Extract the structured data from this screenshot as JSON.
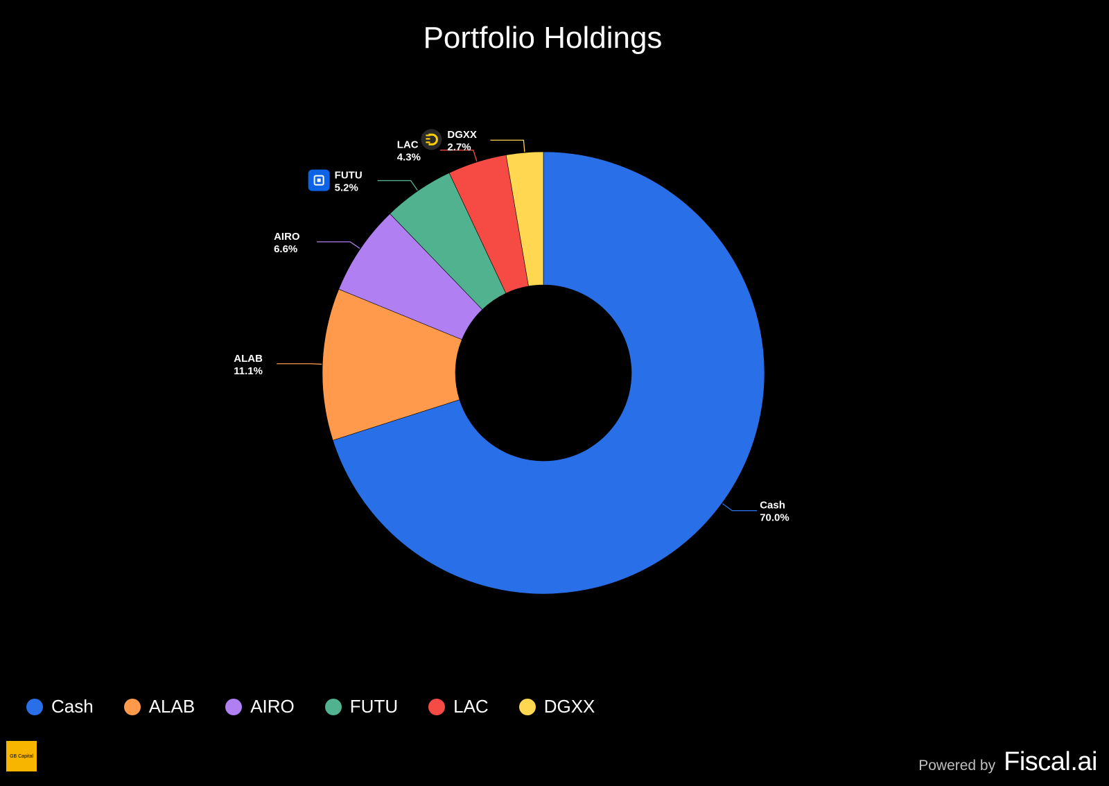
{
  "chart_data": {
    "type": "pie",
    "variant": "donut",
    "title": "Portfolio Holdings",
    "slices": [
      {
        "name": "Cash",
        "value": 70.0,
        "label": "70.0%",
        "color": "#2970e8",
        "icon": ""
      },
      {
        "name": "ALAB",
        "value": 11.1,
        "label": "11.1%",
        "color": "#ff9a4d",
        "icon": ""
      },
      {
        "name": "AIRO",
        "value": 6.6,
        "label": "6.6%",
        "color": "#b07ff2",
        "icon": ""
      },
      {
        "name": "FUTU",
        "value": 5.2,
        "label": "5.2%",
        "color": "#51b28f",
        "icon": "futu-logo-icon"
      },
      {
        "name": "LAC",
        "value": 4.3,
        "label": "4.3%",
        "color": "#f64b45",
        "icon": ""
      },
      {
        "name": "DGXX",
        "value": 2.7,
        "label": "2.7%",
        "color": "#ffd751",
        "icon": "dgxx-logo-icon"
      }
    ],
    "legend": {
      "placement": "bottom-left",
      "entries": [
        "Cash",
        "ALAB",
        "AIRO",
        "FUTU",
        "LAC",
        "DGXX"
      ]
    }
  },
  "footer": {
    "logo_text": "GB Capital",
    "powered_by": "Powered by",
    "brand": "Fiscal.ai"
  }
}
